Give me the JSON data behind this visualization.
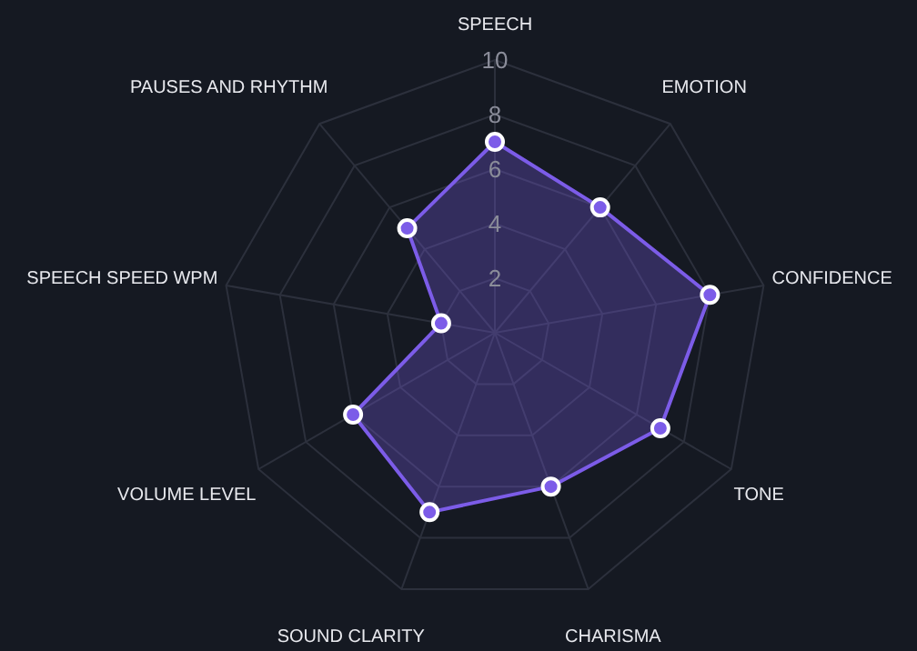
{
  "chart_data": {
    "type": "radar",
    "categories": [
      "SPEECH",
      "EMOTION",
      "CONFIDENCE",
      "TONE",
      "CHARISMA",
      "SOUND CLARITY",
      "VOLUME LEVEL",
      "SPEECH SPEED WPM",
      "PAUSES AND RHYTHM"
    ],
    "series": [
      {
        "color": "#7c5ce8",
        "values": [
          7,
          6,
          8,
          7,
          6,
          7,
          6,
          2,
          5
        ]
      }
    ],
    "ylim": [
      0,
      10
    ],
    "yticks": [
      2,
      4,
      6,
      8,
      10
    ],
    "grid": true,
    "marker": "circle"
  }
}
